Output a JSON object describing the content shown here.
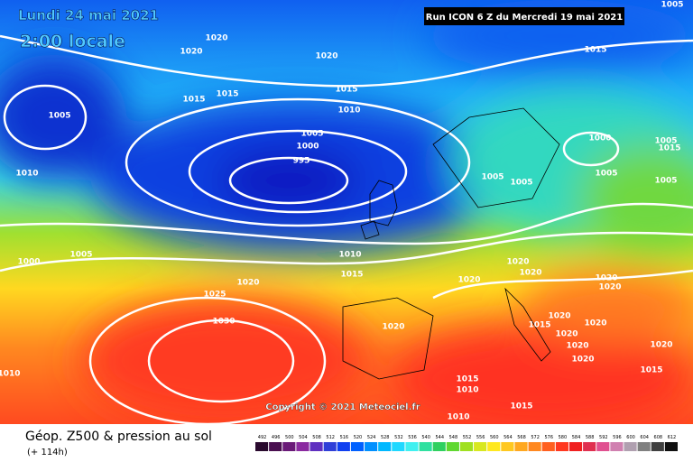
{
  "header": {
    "date": "Lundi 24 mai 2021",
    "time": "2:00 locale",
    "run": "Run ICON 6 Z du Mercredi 19 mai 2021"
  },
  "copyright": "Copyright © 2021 Meteociel.fr",
  "footer": {
    "title": "Géop. Z500 & pression au sol",
    "lead": "(+ 114h)"
  },
  "isobar_labels": [
    1005,
    1020,
    1020,
    1020,
    1015,
    1015,
    1015,
    1015,
    1010,
    1005,
    1005,
    1000,
    995,
    1000,
    1005,
    1015,
    1005,
    1005,
    1005,
    1005,
    1010,
    1005,
    1000,
    1010,
    1015,
    1020,
    1020,
    1020,
    1020,
    1025,
    1020,
    1020,
    1020,
    1020,
    1015,
    1020,
    1030,
    1020,
    1020,
    1020,
    1020,
    1010,
    1015,
    1015,
    1010,
    1015,
    1010
  ],
  "colorbar": {
    "labels": [
      492,
      496,
      500,
      504,
      508,
      512,
      516,
      520,
      524,
      528,
      532,
      536,
      540,
      544,
      548,
      552,
      556,
      560,
      564,
      568,
      572,
      576,
      580,
      584,
      588,
      592,
      596,
      600,
      604,
      608,
      612
    ],
    "colors": [
      "#2a0a2e",
      "#4a0f50",
      "#6a1a78",
      "#8a2aa0",
      "#6030c0",
      "#3040d8",
      "#1040f0",
      "#0060ff",
      "#0090ff",
      "#00b8ff",
      "#20d8ff",
      "#40f0f0",
      "#30e0a0",
      "#30d060",
      "#60d830",
      "#a0e020",
      "#d8e820",
      "#ffe820",
      "#ffc820",
      "#ffa820",
      "#ff8820",
      "#ff6020",
      "#ff3820",
      "#f02020",
      "#e03050",
      "#e05090",
      "#d080b0",
      "#b0a0b0",
      "#808080",
      "#404040",
      "#101010"
    ]
  }
}
